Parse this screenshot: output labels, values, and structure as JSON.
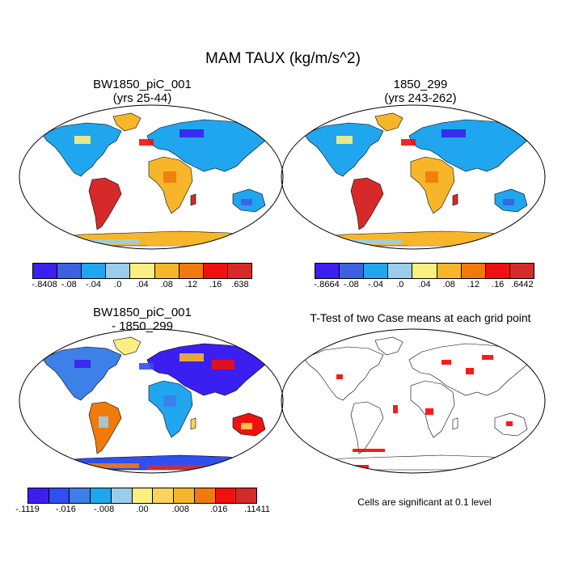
{
  "figure": {
    "title": "MAM TAUX (kg/m/s^2)",
    "panels": [
      {
        "id": "panel-case1",
        "title_line1": "BW1850_piC_001",
        "title_line2": "(yrs 25-44)",
        "colorbar": {
          "labels": [
            "-.8408",
            "-.08",
            "-.04",
            ".0",
            ".04",
            ".08",
            ".12",
            ".16",
            ".638"
          ],
          "colors": [
            "#3b1ff0",
            "#3d62e0",
            "#1fa6ef",
            "#9ccde8",
            "#fbef81",
            "#f7b62a",
            "#f07a0c",
            "#f01010",
            "#d62a2a"
          ]
        }
      },
      {
        "id": "panel-case2",
        "title_line1": "1850_299",
        "title_line2": "(yrs 243-262)",
        "colorbar": {
          "labels": [
            "-.8664",
            "-.08",
            "-.04",
            ".0",
            ".04",
            ".08",
            ".12",
            ".16",
            ".6442"
          ],
          "colors": [
            "#3b1ff0",
            "#3d62e0",
            "#1fa6ef",
            "#9ccde8",
            "#fbef81",
            "#f7b62a",
            "#f07a0c",
            "#f01010",
            "#d62a2a"
          ]
        }
      },
      {
        "id": "panel-diff",
        "title_line1": "BW1850_piC_001",
        "title_line2": "- 1850_299",
        "colorbar": {
          "labels": [
            "-.1119",
            "-.016",
            "-.008",
            ".00",
            ".008",
            ".016",
            ".11411"
          ],
          "colors": [
            "#3b1ff0",
            "#2f4ff0",
            "#3d80e8",
            "#1fa6ef",
            "#9ccde8",
            "#fbef81",
            "#f8d45a",
            "#f7b62a",
            "#f07a0c",
            "#f01010",
            "#d62a2a"
          ]
        }
      },
      {
        "id": "panel-ttest",
        "title_line1": "T-Test of two Case means at each grid point",
        "note": "Cells are significant at 0.1 level",
        "significance_color": "#ff0000"
      }
    ]
  }
}
